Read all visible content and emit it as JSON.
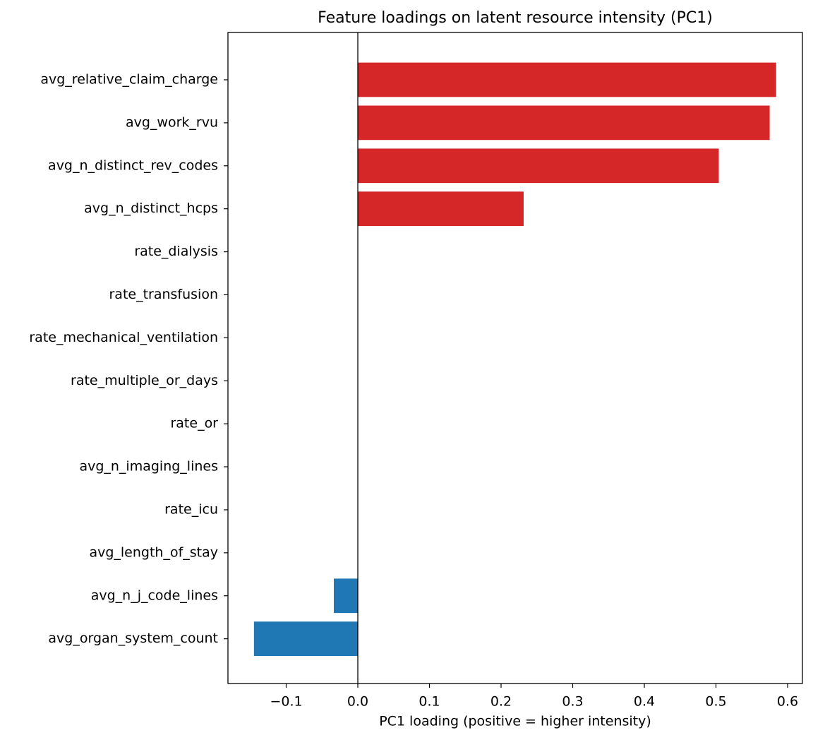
{
  "chart_data": {
    "type": "barh",
    "title": "Feature loadings on latent resource intensity (PC1)",
    "x_label": "PC1 loading (positive = higher intensity)",
    "categories": [
      "avg_relative_claim_charge",
      "avg_work_rvu",
      "avg_n_distinct_rev_codes",
      "avg_n_distinct_hcps",
      "rate_dialysis",
      "rate_transfusion",
      "rate_mechanical_ventilation",
      "rate_multiple_or_days",
      "rate_or",
      "avg_n_imaging_lines",
      "rate_icu",
      "avg_length_of_stay",
      "avg_n_j_code_lines",
      "avg_organ_system_count"
    ],
    "values": [
      0.584,
      0.575,
      0.504,
      0.2315,
      0,
      0,
      0,
      0,
      0,
      0,
      0,
      0,
      -0.0335,
      -0.145
    ],
    "colors": [
      "#d62728",
      "#d62728",
      "#d62728",
      "#d62728",
      "#1f77b4",
      "#1f77b4",
      "#1f77b4",
      "#1f77b4",
      "#1f77b4",
      "#1f77b4",
      "#1f77b4",
      "#1f77b4",
      "#1f77b4",
      "#1f77b4"
    ],
    "xlim": [
      -0.1813,
      0.6207
    ],
    "xticks": [
      {
        "value": -0.1,
        "label": "−0.1"
      },
      {
        "value": 0,
        "label": "0.0"
      },
      0.1,
      0.2,
      0.3,
      0.4,
      0.5,
      0.6
    ],
    "zero_line": true
  }
}
